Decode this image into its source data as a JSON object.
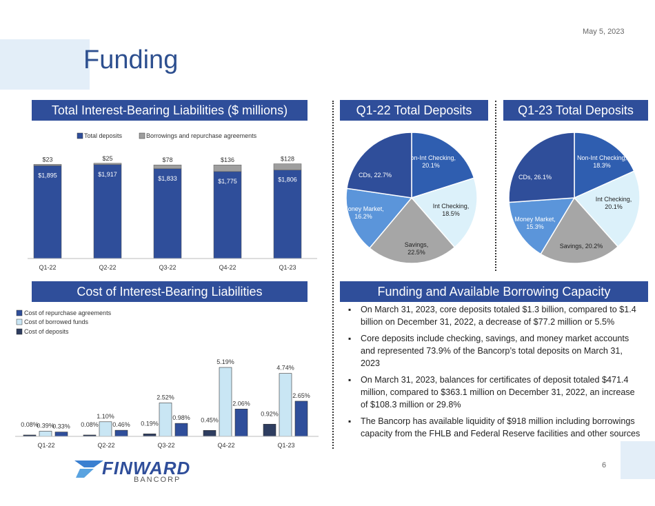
{
  "date": "May 5, 2023",
  "title": "Funding",
  "page_number": "6",
  "logo": {
    "name": "FINWARD",
    "sub": "BANCORP"
  },
  "sections": {
    "liabilities": "Total Interest-Bearing Liabilities ($ millions)",
    "q122": "Q1-22 Total Deposits",
    "q123": "Q1-23 Total Deposits",
    "cost": "Cost of Interest-Bearing Liabilities",
    "capacity": "Funding and Available Borrowing Capacity"
  },
  "bullets": [
    "On March 31, 2023, core deposits totaled $1.3 billion, compared to $1.4 billion on December 31, 2022, a decrease of $77.2 million or 5.5%",
    "Core deposits include checking, savings, and money market accounts and represented 73.9% of the Bancorp’s total deposits on March 31, 2023",
    "On March 31, 2023, balances for certificates of deposit totaled $471.4 million, compared to $363.1 million on December 31, 2022, an increase of $108.3 million or 29.8%",
    "The Bancorp has available liquidity of $918 million including borrowings capacity from the FHLB and Federal Reserve facilities and other sources"
  ],
  "colors": {
    "navy": "#2f4e9a",
    "gray": "#9e9e9e",
    "light": "#c9e6f4",
    "mid": "#5b8fd0",
    "dark": "#2e3d60"
  },
  "chart_data": [
    {
      "type": "bar",
      "stacked": true,
      "categories": [
        "Q1-22",
        "Q2-22",
        "Q3-22",
        "Q4-22",
        "Q1-23"
      ],
      "series": [
        {
          "name": "Total deposits",
          "values": [
            1895,
            1917,
            1833,
            1775,
            1806
          ],
          "labels": [
            "$1,895",
            "$1,917",
            "$1,833",
            "$1,775",
            "$1,806"
          ]
        },
        {
          "name": "Borrowings and repurchase agreements",
          "values": [
            23,
            25,
            78,
            136,
            128
          ],
          "labels": [
            "$23",
            "$25",
            "$78",
            "$136",
            "$128"
          ]
        }
      ],
      "ylim": [
        0,
        2000
      ]
    },
    {
      "type": "pie",
      "title": "Q1-22 Total Deposits",
      "slices": [
        {
          "label": "Non-Int Checking,",
          "value": 20.1,
          "pct": "20.1%"
        },
        {
          "label": "Int Checking,",
          "value": 18.5,
          "pct": "18.5%"
        },
        {
          "label": "Savings,",
          "value": 22.5,
          "pct": "22.5%"
        },
        {
          "label": "Money Market,",
          "value": 16.2,
          "pct": "16.2%"
        },
        {
          "label": "CDs,",
          "value": 22.7,
          "pct": "22.7%"
        }
      ]
    },
    {
      "type": "pie",
      "title": "Q1-23 Total Deposits",
      "slices": [
        {
          "label": "Non-Int Checking,",
          "value": 18.3,
          "pct": "18.3%"
        },
        {
          "label": "Int Checking,",
          "value": 20.1,
          "pct": "20.1%"
        },
        {
          "label": "Savings,",
          "value": 20.2,
          "pct": "20.2%"
        },
        {
          "label": "Money Market,",
          "value": 15.3,
          "pct": "15.3%"
        },
        {
          "label": "CDs,",
          "value": 26.1,
          "pct": "26.1%"
        }
      ]
    },
    {
      "type": "bar",
      "categories": [
        "Q1-22",
        "Q2-22",
        "Q3-22",
        "Q4-22",
        "Q1-23"
      ],
      "series": [
        {
          "name": "Cost of repurchase agreements",
          "values": [
            0.08,
            0.08,
            0.19,
            0.45,
            0.92
          ],
          "labels": [
            "0.08%",
            "0.08%",
            "0.19%",
            "0.45%",
            "0.92%"
          ]
        },
        {
          "name": "Cost of borrowed funds",
          "values": [
            0.39,
            1.1,
            2.52,
            5.19,
            4.74
          ],
          "labels": [
            "0.39%",
            "1.10%",
            "2.52%",
            "5.19%",
            "4.74%"
          ]
        },
        {
          "name": "Cost of deposits",
          "values": [
            0.33,
            0.46,
            0.98,
            2.06,
            2.65
          ],
          "labels": [
            "0.33%",
            "0.46%",
            "0.98%",
            "2.06%",
            "2.65%"
          ]
        }
      ],
      "ylim": [
        0,
        6
      ]
    }
  ]
}
